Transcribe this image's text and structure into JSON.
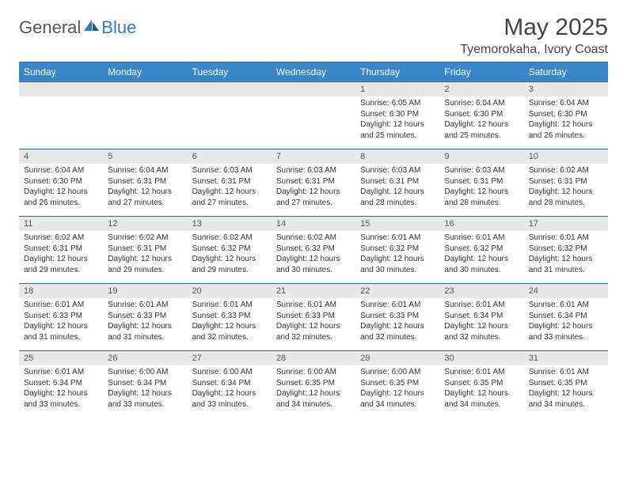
{
  "logo": {
    "part1": "General",
    "part2": "Blue"
  },
  "title": "May 2025",
  "location": "Tyemorokaha, Ivory Coast",
  "colors": {
    "header_bg": "#3a86c8",
    "header_text": "#ffffff",
    "daynum_bg": "#e8e8e8",
    "row_border": "#2a6aa0",
    "logo_accent": "#2e7bc0",
    "text": "#333333"
  },
  "day_names": [
    "Sunday",
    "Monday",
    "Tuesday",
    "Wednesday",
    "Thursday",
    "Friday",
    "Saturday"
  ],
  "weeks": [
    {
      "nums": [
        "",
        "",
        "",
        "",
        "1",
        "2",
        "3"
      ],
      "details": [
        null,
        null,
        null,
        null,
        {
          "sunrise": "6:05 AM",
          "sunset": "6:30 PM",
          "daylight": "12 hours and 25 minutes."
        },
        {
          "sunrise": "6:04 AM",
          "sunset": "6:30 PM",
          "daylight": "12 hours and 25 minutes."
        },
        {
          "sunrise": "6:04 AM",
          "sunset": "6:30 PM",
          "daylight": "12 hours and 26 minutes."
        }
      ]
    },
    {
      "nums": [
        "4",
        "5",
        "6",
        "7",
        "8",
        "9",
        "10"
      ],
      "details": [
        {
          "sunrise": "6:04 AM",
          "sunset": "6:30 PM",
          "daylight": "12 hours and 26 minutes."
        },
        {
          "sunrise": "6:04 AM",
          "sunset": "6:31 PM",
          "daylight": "12 hours and 27 minutes."
        },
        {
          "sunrise": "6:03 AM",
          "sunset": "6:31 PM",
          "daylight": "12 hours and 27 minutes."
        },
        {
          "sunrise": "6:03 AM",
          "sunset": "6:31 PM",
          "daylight": "12 hours and 27 minutes."
        },
        {
          "sunrise": "6:03 AM",
          "sunset": "6:31 PM",
          "daylight": "12 hours and 28 minutes."
        },
        {
          "sunrise": "6:03 AM",
          "sunset": "6:31 PM",
          "daylight": "12 hours and 28 minutes."
        },
        {
          "sunrise": "6:02 AM",
          "sunset": "6:31 PM",
          "daylight": "12 hours and 28 minutes."
        }
      ]
    },
    {
      "nums": [
        "11",
        "12",
        "13",
        "14",
        "15",
        "16",
        "17"
      ],
      "details": [
        {
          "sunrise": "6:02 AM",
          "sunset": "6:31 PM",
          "daylight": "12 hours and 29 minutes."
        },
        {
          "sunrise": "6:02 AM",
          "sunset": "6:31 PM",
          "daylight": "12 hours and 29 minutes."
        },
        {
          "sunrise": "6:02 AM",
          "sunset": "6:32 PM",
          "daylight": "12 hours and 29 minutes."
        },
        {
          "sunrise": "6:02 AM",
          "sunset": "6:32 PM",
          "daylight": "12 hours and 30 minutes."
        },
        {
          "sunrise": "6:01 AM",
          "sunset": "6:32 PM",
          "daylight": "12 hours and 30 minutes."
        },
        {
          "sunrise": "6:01 AM",
          "sunset": "6:32 PM",
          "daylight": "12 hours and 30 minutes."
        },
        {
          "sunrise": "6:01 AM",
          "sunset": "6:32 PM",
          "daylight": "12 hours and 31 minutes."
        }
      ]
    },
    {
      "nums": [
        "18",
        "19",
        "20",
        "21",
        "22",
        "23",
        "24"
      ],
      "details": [
        {
          "sunrise": "6:01 AM",
          "sunset": "6:33 PM",
          "daylight": "12 hours and 31 minutes."
        },
        {
          "sunrise": "6:01 AM",
          "sunset": "6:33 PM",
          "daylight": "12 hours and 31 minutes."
        },
        {
          "sunrise": "6:01 AM",
          "sunset": "6:33 PM",
          "daylight": "12 hours and 32 minutes."
        },
        {
          "sunrise": "6:01 AM",
          "sunset": "6:33 PM",
          "daylight": "12 hours and 32 minutes."
        },
        {
          "sunrise": "6:01 AM",
          "sunset": "6:33 PM",
          "daylight": "12 hours and 32 minutes."
        },
        {
          "sunrise": "6:01 AM",
          "sunset": "6:34 PM",
          "daylight": "12 hours and 32 minutes."
        },
        {
          "sunrise": "6:01 AM",
          "sunset": "6:34 PM",
          "daylight": "12 hours and 33 minutes."
        }
      ]
    },
    {
      "nums": [
        "25",
        "26",
        "27",
        "28",
        "29",
        "30",
        "31"
      ],
      "details": [
        {
          "sunrise": "6:01 AM",
          "sunset": "6:34 PM",
          "daylight": "12 hours and 33 minutes."
        },
        {
          "sunrise": "6:00 AM",
          "sunset": "6:34 PM",
          "daylight": "12 hours and 33 minutes."
        },
        {
          "sunrise": "6:00 AM",
          "sunset": "6:34 PM",
          "daylight": "12 hours and 33 minutes."
        },
        {
          "sunrise": "6:00 AM",
          "sunset": "6:35 PM",
          "daylight": "12 hours and 34 minutes."
        },
        {
          "sunrise": "6:00 AM",
          "sunset": "6:35 PM",
          "daylight": "12 hours and 34 minutes."
        },
        {
          "sunrise": "6:01 AM",
          "sunset": "6:35 PM",
          "daylight": "12 hours and 34 minutes."
        },
        {
          "sunrise": "6:01 AM",
          "sunset": "6:35 PM",
          "daylight": "12 hours and 34 minutes."
        }
      ]
    }
  ],
  "labels": {
    "sunrise": "Sunrise: ",
    "sunset": "Sunset: ",
    "daylight": "Daylight: "
  }
}
